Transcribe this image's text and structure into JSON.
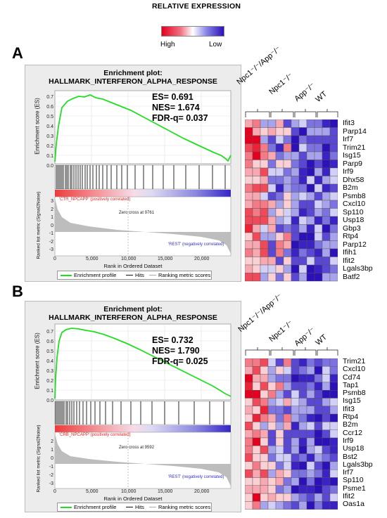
{
  "legend": {
    "title": "RELATIVE EXPRESSION",
    "high": "High",
    "low": "Low"
  },
  "colors": {
    "high": "#e4001f",
    "mid": "#ffffff",
    "low": "#2c10b8",
    "curve": "#22dd22"
  },
  "groups": [
    "Npc1⁻/⁻/App⁻/⁻",
    "Npc1⁻/⁻",
    "App⁻/⁻",
    "WT"
  ],
  "panels": [
    {
      "letter": "A",
      "plot_title": "Enrichment plot:",
      "plot_subtitle": "HALLMARK_INTERFERON_ALPHA_RESPONSE",
      "stats": {
        "es": "ES= 0.691",
        "nes": "NES= 1.674",
        "fdr": "FDR-q= 0.037"
      },
      "es_ylabel": "Enrichment score (ES)",
      "es_ticks": [
        "0.7",
        "0.6",
        "0.5",
        "0.4",
        "0.3",
        "0.2",
        "0.1",
        "0.0"
      ],
      "metric_ylabel": "Ranked list metric (Signal2Noise)",
      "metric_ticks": [
        "3",
        "2",
        "1",
        "0",
        "-1",
        "-2",
        "-3"
      ],
      "pos_label": "'CTR_NPCAPP' (positively correlated)",
      "neg_label": "'REST' (negatively correlated)",
      "zero_cross": "Zero cross at 9761",
      "xlabel": "Rank in Ordered Dataset",
      "x_ticks": [
        "0",
        "5,000",
        "10,000",
        "15,000",
        "20,000"
      ],
      "legend_items": [
        "Enrichment profile",
        "Hits",
        "Ranking metric scores"
      ],
      "genes": [
        "Ifit3",
        "Parp14",
        "Irf7",
        "Trim21",
        "Isg15",
        "Parp9",
        "Irf9",
        "Dhx58",
        "B2m",
        "Psmb8",
        "Cxcl10",
        "Sp110",
        "Usp18",
        "Gbp3",
        "Rtp4",
        "Parp12",
        "Ifih1",
        "Ifit2",
        "Lgals3bp",
        "Batf2"
      ]
    },
    {
      "letter": "B",
      "plot_title": "Enrichment plot:",
      "plot_subtitle": "HALLMARK_INTERFERON_ALPHA_RESPONSE",
      "stats": {
        "es": "ES= 0.732",
        "nes": "NES= 1.790",
        "fdr": "FDR-q= 0.025"
      },
      "es_ylabel": "Enrichment score (ES)",
      "es_ticks": [
        "0.7",
        "0.6",
        "0.5",
        "0.4",
        "0.3",
        "0.2",
        "0.1",
        "0.0"
      ],
      "metric_ylabel": "Ranked list metric (Signal2Noise)",
      "metric_ticks": [
        "2",
        "1",
        "0",
        "-1",
        "-2",
        "-3"
      ],
      "pos_label": "'CRB_NPCAPP' (positively correlated)",
      "neg_label": "'REST' (negatively correlated)",
      "zero_cross": "Zero cross at 9592",
      "xlabel": "Rank in Ordered Dataset",
      "x_ticks": [
        "0",
        "5,000",
        "10,000",
        "15,000",
        "20,000"
      ],
      "legend_items": [
        "Enrichment profile",
        "Hits",
        "Ranking metric scores"
      ],
      "genes": [
        "Trim21",
        "Cxcl10",
        "Cd74",
        "Tap1",
        "Psmb8",
        "Isg15",
        "Ifit3",
        "Rtp4",
        "B2m",
        "Ccr12",
        "Irf9",
        "Usp18",
        "Bst2",
        "Lgals3bp",
        "Irf7",
        "Sp110",
        "Psme1",
        "Ifit2",
        "Oas1a"
      ]
    }
  ]
}
